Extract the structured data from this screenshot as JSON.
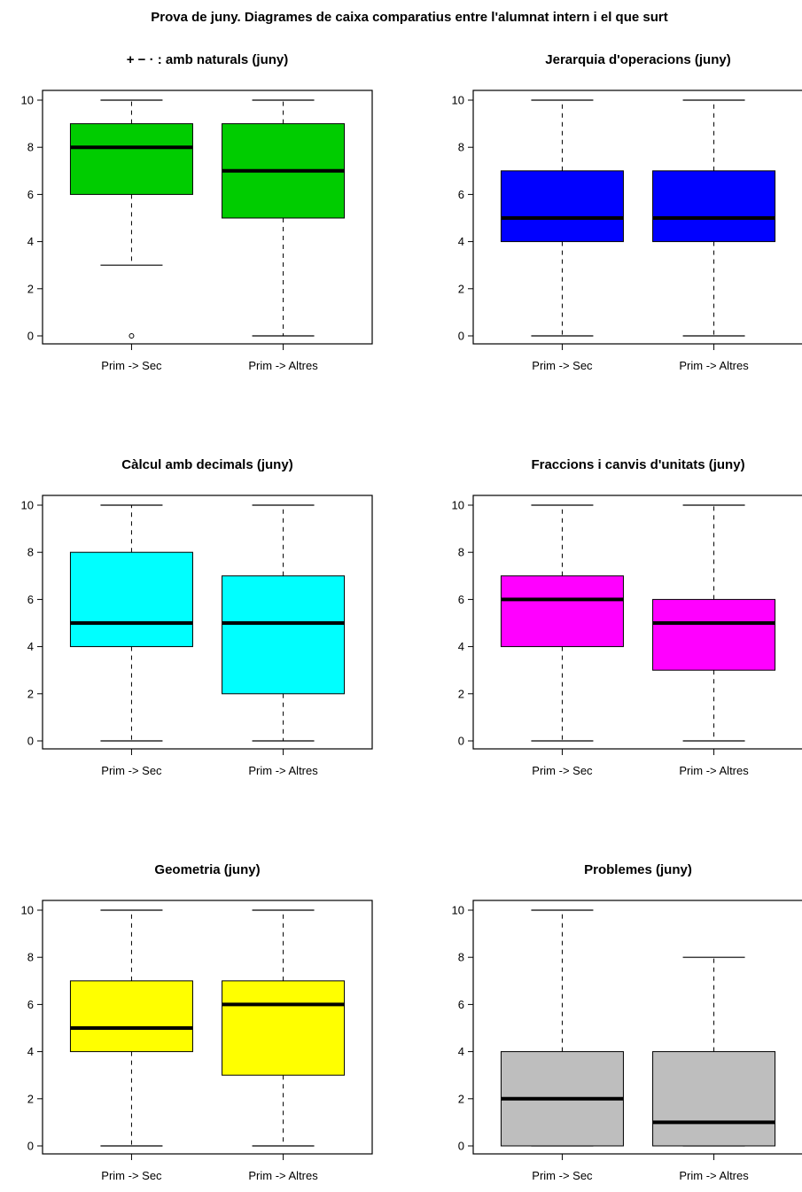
{
  "title": "Prova de juny. Diagrames de caixa comparatius entre l'alumnat intern i el que surt",
  "chart_data": [
    {
      "type": "boxplot",
      "title": "+ − · : amb naturals (juny)",
      "categories": [
        "Prim -> Sec",
        "Prim -> Altres"
      ],
      "fill": "#00cc00",
      "ylim": [
        0,
        10
      ],
      "yticks": [
        0,
        2,
        4,
        6,
        8,
        10
      ],
      "boxes": [
        {
          "min": 3,
          "q1": 6,
          "median": 8,
          "q3": 9,
          "max": 10,
          "outliers": [
            0
          ]
        },
        {
          "min": 0,
          "q1": 5,
          "median": 7,
          "q3": 9,
          "max": 10,
          "outliers": []
        }
      ]
    },
    {
      "type": "boxplot",
      "title": "Jerarquia d'operacions (juny)",
      "categories": [
        "Prim -> Sec",
        "Prim -> Altres"
      ],
      "fill": "#0000ff",
      "ylim": [
        0,
        10
      ],
      "yticks": [
        0,
        2,
        4,
        6,
        8,
        10
      ],
      "boxes": [
        {
          "min": 0,
          "q1": 4,
          "median": 5,
          "q3": 7,
          "max": 10,
          "outliers": []
        },
        {
          "min": 0,
          "q1": 4,
          "median": 5,
          "q3": 7,
          "max": 10,
          "outliers": []
        }
      ]
    },
    {
      "type": "boxplot",
      "title": "Càlcul amb decimals (juny)",
      "categories": [
        "Prim -> Sec",
        "Prim -> Altres"
      ],
      "fill": "#00ffff",
      "ylim": [
        0,
        10
      ],
      "yticks": [
        0,
        2,
        4,
        6,
        8,
        10
      ],
      "boxes": [
        {
          "min": 0,
          "q1": 4,
          "median": 5,
          "q3": 8,
          "max": 10,
          "outliers": []
        },
        {
          "min": 0,
          "q1": 2,
          "median": 5,
          "q3": 7,
          "max": 10,
          "outliers": []
        }
      ]
    },
    {
      "type": "boxplot",
      "title": "Fraccions i canvis d'unitats (juny)",
      "categories": [
        "Prim -> Sec",
        "Prim -> Altres"
      ],
      "fill": "#ff00ff",
      "ylim": [
        0,
        10
      ],
      "yticks": [
        0,
        2,
        4,
        6,
        8,
        10
      ],
      "boxes": [
        {
          "min": 0,
          "q1": 4,
          "median": 6,
          "q3": 7,
          "max": 10,
          "outliers": []
        },
        {
          "min": 0,
          "q1": 3,
          "median": 5,
          "q3": 6,
          "max": 10,
          "outliers": []
        }
      ]
    },
    {
      "type": "boxplot",
      "title": "Geometria (juny)",
      "categories": [
        "Prim -> Sec",
        "Prim -> Altres"
      ],
      "fill": "#ffff00",
      "ylim": [
        0,
        10
      ],
      "yticks": [
        0,
        2,
        4,
        6,
        8,
        10
      ],
      "boxes": [
        {
          "min": 0,
          "q1": 4,
          "median": 5,
          "q3": 7,
          "max": 10,
          "outliers": []
        },
        {
          "min": 0,
          "q1": 3,
          "median": 6,
          "q3": 7,
          "max": 10,
          "outliers": []
        }
      ]
    },
    {
      "type": "boxplot",
      "title": "Problemes (juny)",
      "categories": [
        "Prim -> Sec",
        "Prim -> Altres"
      ],
      "fill": "#bebebe",
      "ylim": [
        0,
        10
      ],
      "yticks": [
        0,
        2,
        4,
        6,
        8,
        10
      ],
      "boxes": [
        {
          "min": 0,
          "q1": 0,
          "median": 2,
          "q3": 4,
          "max": 10,
          "outliers": []
        },
        {
          "min": 0,
          "q1": 0,
          "median": 1,
          "q3": 4,
          "max": 8,
          "outliers": []
        }
      ]
    }
  ]
}
